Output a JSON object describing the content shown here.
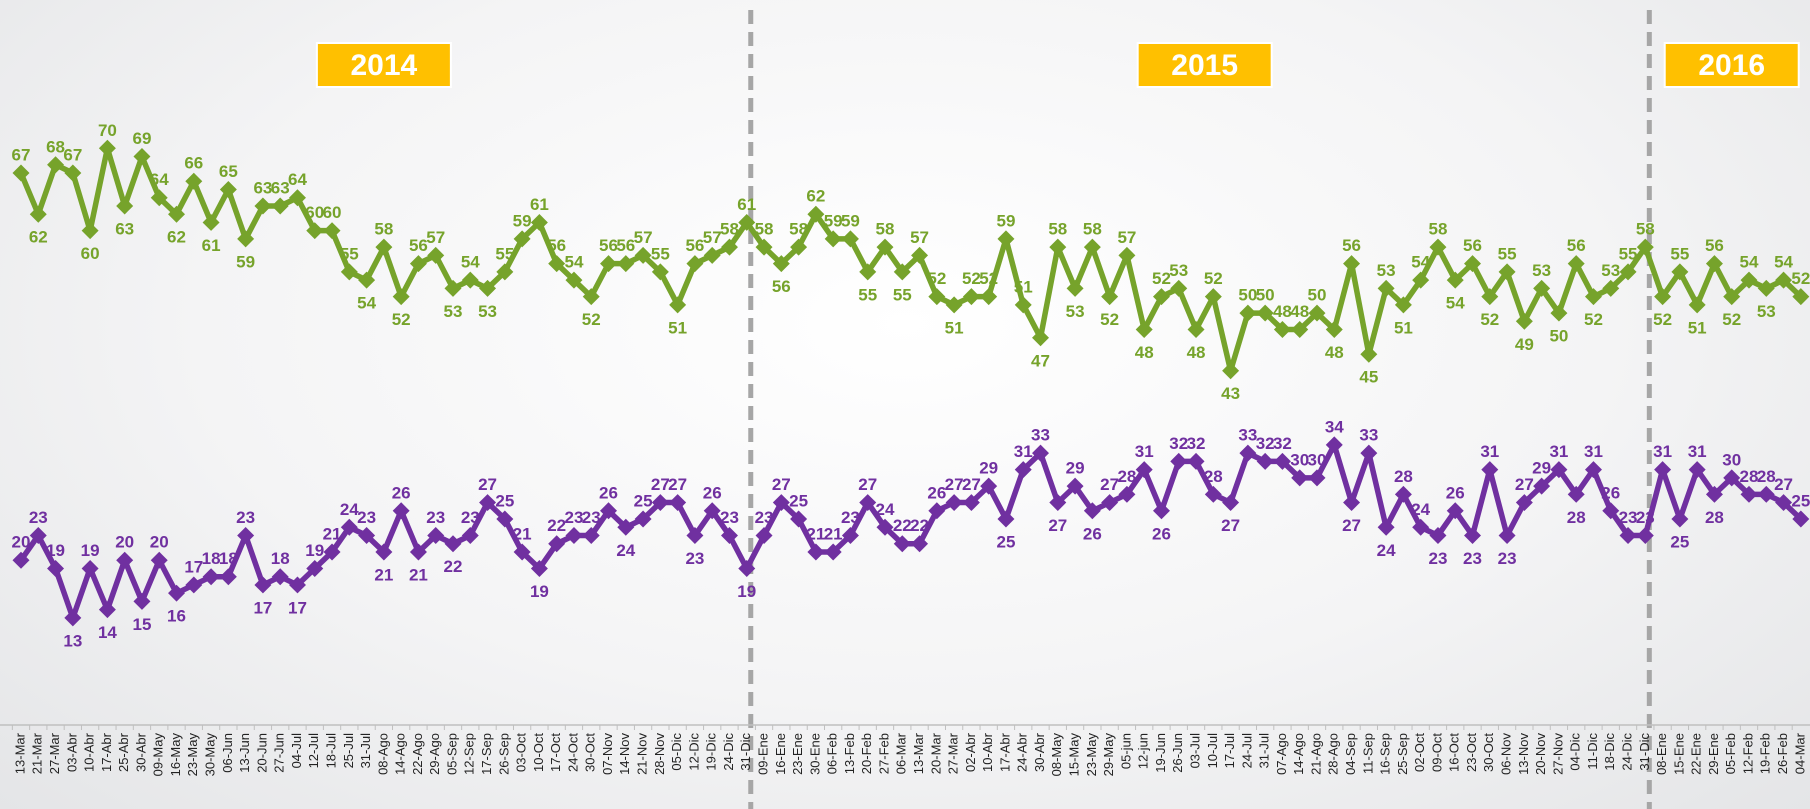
{
  "chart_data": {
    "type": "line",
    "annotations": [
      "2014",
      "2015",
      "2016"
    ],
    "categories": [
      "13-Mar",
      "21-Mar",
      "27-Mar",
      "03-Abr",
      "10-Abr",
      "17-Abr",
      "25-Abr",
      "30-Abr",
      "09-May",
      "16-May",
      "23-May",
      "30-May",
      "06-Jun",
      "13-Jun",
      "20-Jun",
      "27-Jun",
      "04-Jul",
      "12-Jul",
      "18-Jul",
      "25-Jul",
      "31-Jul",
      "08-Ago",
      "14-Ago",
      "22-Ago",
      "29-Ago",
      "05-Sep",
      "12-Sep",
      "17-Sep",
      "26-Sep",
      "03-Oct",
      "10-Oct",
      "17-Oct",
      "24-Oct",
      "30-Oct",
      "07-Nov",
      "14-Nov",
      "21-Nov",
      "28-Nov",
      "05-Dic",
      "12-Dic",
      "19-Dic",
      "24-Dic",
      "31-Dic",
      "09-Ene",
      "16-Ene",
      "23-Ene",
      "30-Ene",
      "06-Feb",
      "13-Feb",
      "20-Feb",
      "27-Feb",
      "06-Mar",
      "13-Mar",
      "20-Mar",
      "27-Mar",
      "02-Abr",
      "10-Abr",
      "17-Abr",
      "24-Abr",
      "30-Abr",
      "08-May",
      "15-May",
      "23-May",
      "29-May",
      "05-jun",
      "12-jun",
      "19-Jun",
      "26-Jun",
      "03-Jul",
      "10-Jul",
      "17-Jul",
      "24-Jul",
      "31-Jul",
      "07-Ago",
      "14-Ago",
      "21-Ago",
      "28-Ago",
      "04-Sep",
      "11-Sep",
      "16-Sep",
      "25-Sep",
      "02-Oct",
      "09-Oct",
      "16-Oct",
      "23-Oct",
      "30-Oct",
      "06-Nov",
      "13-Nov",
      "20-Nov",
      "27-Nov",
      "04-Dic",
      "11-Dic",
      "18-Dic",
      "24-Dic",
      "31-Dic",
      "08-Ene",
      "15-Ene",
      "22-Ene",
      "29-Ene",
      "05-Feb",
      "12-Feb",
      "19-Feb",
      "26-Feb",
      "04-Mar"
    ],
    "series": [
      {
        "color": "#76a32b",
        "values": [
          67,
          62,
          68,
          67,
          60,
          70,
          63,
          69,
          64,
          62,
          66,
          61,
          65,
          59,
          63,
          63,
          64,
          60,
          60,
          55,
          54,
          58,
          52,
          56,
          57,
          53,
          54,
          53,
          55,
          59,
          61,
          56,
          54,
          52,
          56,
          56,
          57,
          55,
          51,
          56,
          57,
          58,
          61,
          58,
          56,
          58,
          62,
          59,
          59,
          55,
          58,
          55,
          57,
          52,
          51,
          52,
          52,
          59,
          51,
          47,
          58,
          53,
          58,
          52,
          57,
          48,
          52,
          53,
          48,
          52,
          43,
          50,
          50,
          48,
          48,
          50,
          48,
          56,
          45,
          53,
          51,
          54,
          58,
          54,
          56,
          52,
          55,
          49,
          53,
          50,
          56,
          52,
          53,
          55,
          58,
          52,
          55,
          51,
          56,
          52,
          54,
          53,
          54,
          52
        ]
      },
      {
        "color": "#7030a0",
        "values": [
          20,
          23,
          19,
          13,
          19,
          14,
          20,
          15,
          20,
          16,
          17,
          18,
          18,
          23,
          17,
          18,
          17,
          19,
          21,
          24,
          23,
          21,
          26,
          21,
          23,
          22,
          23,
          27,
          25,
          21,
          19,
          22,
          23,
          23,
          26,
          24,
          25,
          27,
          27,
          23,
          26,
          23,
          19,
          23,
          27,
          25,
          21,
          21,
          23,
          27,
          24,
          22,
          22,
          26,
          27,
          27,
          29,
          25,
          31,
          33,
          27,
          29,
          26,
          27,
          28,
          31,
          26,
          32,
          32,
          28,
          27,
          33,
          32,
          32,
          30,
          30,
          34,
          27,
          33,
          24,
          28,
          24,
          23,
          26,
          23,
          31,
          23,
          27,
          29,
          31,
          28,
          31,
          26,
          23,
          23,
          31,
          25,
          31,
          28,
          30,
          28,
          28,
          27,
          25
        ]
      }
    ],
    "ylim": [
      0,
      88
    ],
    "divider_color": "#a6a6a6",
    "annotation_color": "#ffc000"
  }
}
